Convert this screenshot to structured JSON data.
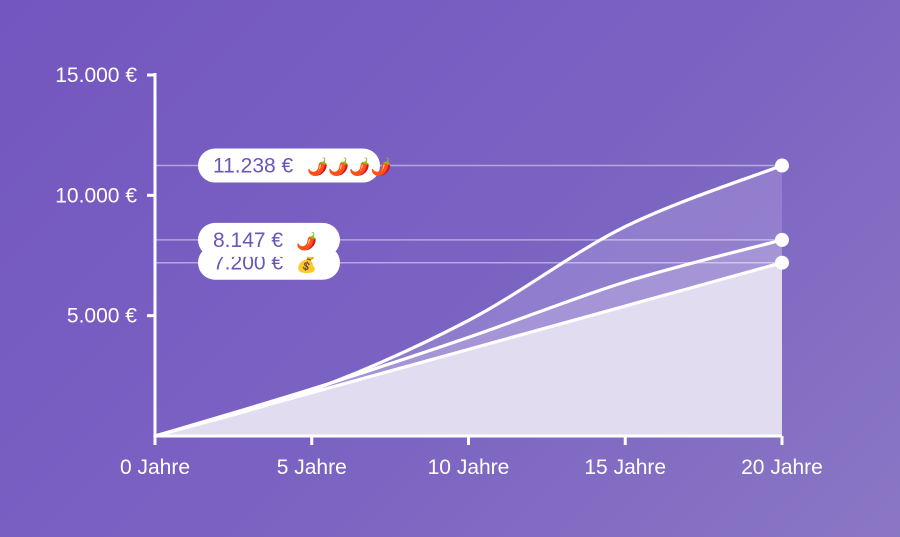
{
  "chart_data": {
    "type": "area",
    "xlim": [
      0,
      20
    ],
    "ylim": [
      0,
      15000
    ],
    "x_ticks": [
      0,
      5,
      10,
      15,
      20
    ],
    "x_tick_labels": [
      "0 Jahre",
      "5 Jahre",
      "10 Jahre",
      "15 Jahre",
      "20 Jahre"
    ],
    "y_ticks": [
      5000,
      10000,
      15000
    ],
    "y_tick_labels": [
      "5.000 €",
      "10.000 €",
      "15.000 €"
    ],
    "grid": false,
    "series": [
      {
        "x": [
          0,
          5,
          10,
          15,
          20
        ],
        "values": [
          0,
          1800,
          3600,
          5400,
          7200
        ],
        "end_label": "7.200 €",
        "icon": "money-bag-icon",
        "emoji": "💰"
      },
      {
        "x": [
          0,
          5,
          10,
          15,
          20
        ],
        "values": [
          0,
          1950,
          4100,
          6400,
          8147
        ],
        "end_label": "8.147 €",
        "icon": "chili-pepper-icon",
        "emoji": "🌶️"
      },
      {
        "x": [
          0,
          5,
          10,
          15,
          20
        ],
        "values": [
          0,
          1900,
          4800,
          8700,
          11238
        ],
        "end_label": "11.238 €",
        "icon": "chili-peppers-icon",
        "emoji": "🌶️🌶️🌶️🌶️"
      }
    ],
    "colors": {
      "line": "#ffffff",
      "fill_base": "#e2dcf1",
      "fill_mid": "#b3a4dc",
      "fill_top": "#9f8ed4",
      "pill_text": "#6b56b8"
    }
  }
}
